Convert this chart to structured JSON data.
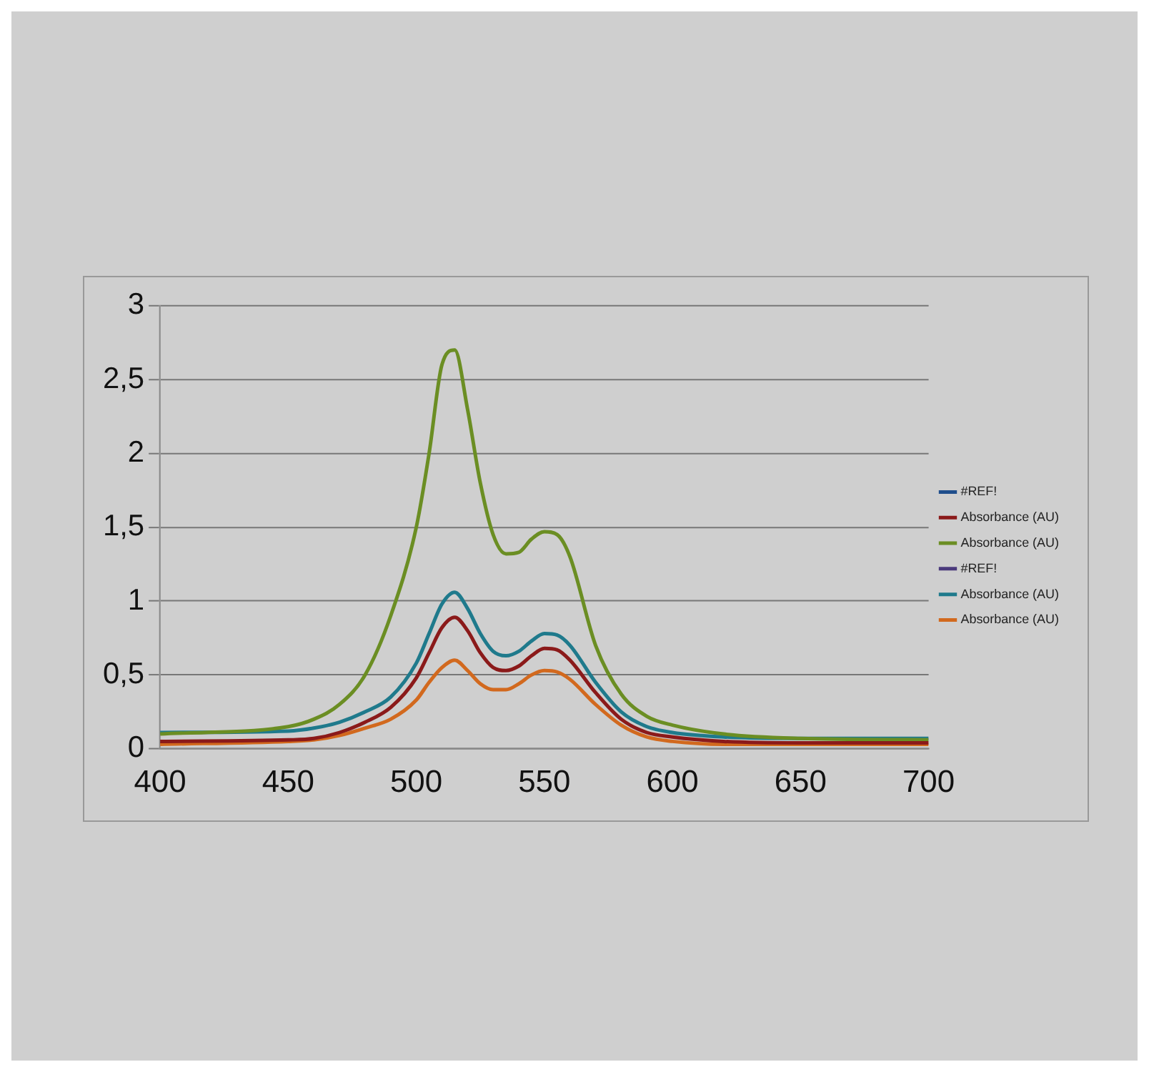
{
  "chart_data": {
    "type": "line",
    "x": [
      400,
      450,
      460,
      470,
      480,
      490,
      500,
      505,
      510,
      515,
      520,
      525,
      530,
      535,
      540,
      545,
      550,
      555,
      560,
      570,
      580,
      590,
      600,
      620,
      650,
      700
    ],
    "series": [
      {
        "name": "#REF!",
        "color": "#1f4e8c",
        "values": [
          null,
          null,
          null,
          null,
          null,
          null,
          null,
          null,
          null,
          null,
          null,
          null,
          null,
          null,
          null,
          null,
          null,
          null,
          null,
          null,
          null,
          null,
          null,
          null,
          null,
          null
        ]
      },
      {
        "name": "Absorbance (AU)",
        "color": "#8b1a1a",
        "values": [
          0.05,
          0.06,
          0.07,
          0.11,
          0.18,
          0.28,
          0.48,
          0.65,
          0.82,
          0.89,
          0.8,
          0.65,
          0.55,
          0.53,
          0.56,
          0.63,
          0.68,
          0.67,
          0.6,
          0.38,
          0.2,
          0.11,
          0.08,
          0.05,
          0.04,
          0.04
        ]
      },
      {
        "name": "Absorbance (AU)",
        "color": "#6b8e23",
        "values": [
          0.1,
          0.15,
          0.2,
          0.3,
          0.5,
          0.9,
          1.5,
          2.0,
          2.6,
          2.7,
          2.3,
          1.8,
          1.45,
          1.32,
          1.33,
          1.42,
          1.47,
          1.45,
          1.3,
          0.7,
          0.37,
          0.22,
          0.16,
          0.1,
          0.07,
          0.06
        ]
      },
      {
        "name": "#REF!",
        "color": "#4b3a7c",
        "values": [
          null,
          null,
          null,
          null,
          null,
          null,
          null,
          null,
          null,
          null,
          null,
          null,
          null,
          null,
          null,
          null,
          null,
          null,
          null,
          null,
          null,
          null,
          null,
          null,
          null,
          null
        ]
      },
      {
        "name": "Absorbance (AU)",
        "color": "#1f7a8c",
        "values": [
          0.11,
          0.12,
          0.14,
          0.18,
          0.25,
          0.35,
          0.58,
          0.78,
          0.98,
          1.06,
          0.95,
          0.78,
          0.66,
          0.63,
          0.66,
          0.73,
          0.78,
          0.77,
          0.7,
          0.45,
          0.25,
          0.15,
          0.11,
          0.08,
          0.07,
          0.07
        ]
      },
      {
        "name": "Absorbance (AU)",
        "color": "#d2691e",
        "values": [
          0.03,
          0.05,
          0.06,
          0.09,
          0.14,
          0.2,
          0.33,
          0.45,
          0.55,
          0.6,
          0.53,
          0.44,
          0.4,
          0.4,
          0.44,
          0.5,
          0.53,
          0.52,
          0.47,
          0.3,
          0.16,
          0.08,
          0.05,
          0.03,
          0.03,
          0.03
        ]
      }
    ],
    "xlim": [
      400,
      700
    ],
    "xticks": [
      400,
      450,
      500,
      550,
      600,
      650,
      700
    ],
    "ylim": [
      0,
      3
    ],
    "yticks": [
      0,
      {
        "value": 0.5,
        "label": "0,5"
      },
      1,
      {
        "value": 1.5,
        "label": "1,5"
      },
      2,
      {
        "value": 2.5,
        "label": "2,5"
      },
      3
    ],
    "grid": "y",
    "legend": "right",
    "marker": "none",
    "line_style": "solid"
  }
}
